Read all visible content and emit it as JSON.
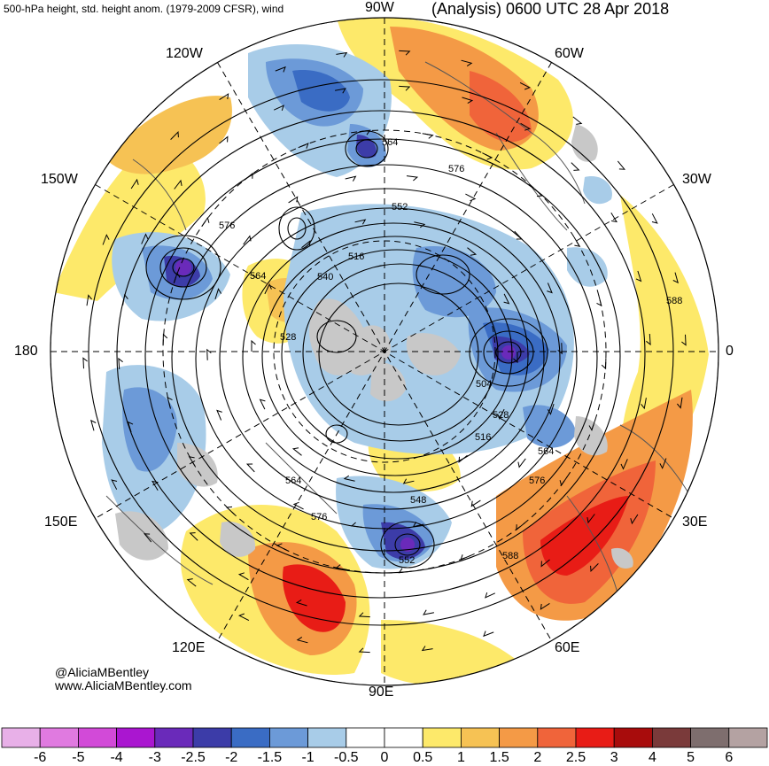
{
  "header": {
    "left_title": "500-hPa height, std. height anom. (1979-2009 CFSR), wind",
    "right_title": "(Analysis) 0600 UTC 28 Apr 2018"
  },
  "longitude_labels": {
    "lon_90w": "90W",
    "lon_120w": "120W",
    "lon_60w": "60W",
    "lon_150w": "150W",
    "lon_30w": "30W",
    "lon_180": "180",
    "lon_0": "0",
    "lon_150e": "150E",
    "lon_30e": "30E",
    "lon_120e": "120E",
    "lon_60e": "60E",
    "lon_90e": "90E"
  },
  "contour_labels": [
    "564",
    "576",
    "552",
    "576",
    "516",
    "564",
    "540",
    "528",
    "504",
    "528",
    "516",
    "564",
    "576",
    "564",
    "576",
    "548",
    "552",
    "588",
    "588"
  ],
  "credits": {
    "handle": "@AliciaMBentley",
    "website": "www.AliciaMBentley.com"
  },
  "colorbar": {
    "labels": [
      "-6",
      "-5",
      "-4",
      "-3",
      "-2.5",
      "-2",
      "-1.5",
      "-1",
      "-0.5",
      "0",
      "0.5",
      "1",
      "1.5",
      "2",
      "2.5",
      "3",
      "4",
      "5",
      "6"
    ],
    "colors": [
      "#e8b0e8",
      "#e07ae0",
      "#d24ad8",
      "#aa16d0",
      "#6a2aba",
      "#3c3ca8",
      "#3a6cc4",
      "#6c9ad8",
      "#a8cce8",
      "#ffffff",
      "#ffffff",
      "#fde96a",
      "#f6c254",
      "#f49a46",
      "#f0643a",
      "#e81c16",
      "#a80c0c",
      "#7a3a3a",
      "#7e6e6e",
      "#b4a2a2"
    ]
  },
  "anomaly_colors": {
    "land": "#c8c8c8",
    "neg_light": "#a8cce8",
    "neg_mid": "#6c9ad8",
    "neg_strong": "#3a6cc4",
    "neg_deep": "#3c3ca8",
    "neg_core": "#6a2aba",
    "pos_light": "#fde96a",
    "pos_mid": "#f6c254",
    "pos_warm": "#f49a46",
    "pos_hot": "#f0643a",
    "pos_core": "#e81c16"
  }
}
